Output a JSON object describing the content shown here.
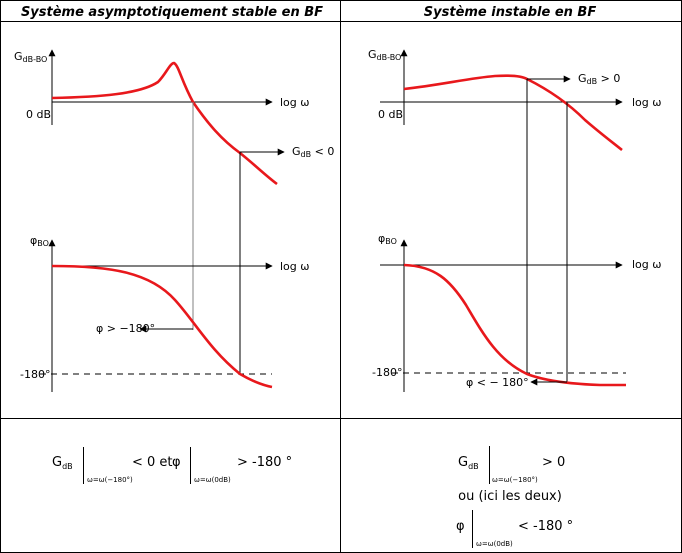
{
  "panels": {
    "left": {
      "title": "Système asymptotiquement stable en BF",
      "gain_axis": {
        "symbol": "G",
        "subscript": "dB-BO"
      },
      "zero_db": "0 dB",
      "x_axis_label": "log ω",
      "gain_annot": {
        "symbol": "G",
        "subscript": "dB",
        "rel": " < 0"
      },
      "phase_axis": {
        "symbol": "φ",
        "subscript": "BO"
      },
      "phase_annot": "φ > −180°",
      "minus180": "-180°"
    },
    "right": {
      "title": "Système instable en BF",
      "gain_axis": {
        "symbol": "G",
        "subscript": "dB-BO"
      },
      "zero_db": "0 dB",
      "x_axis_label": "log ω",
      "gain_annot": {
        "symbol": "G",
        "subscript": "dB",
        "rel": " > 0"
      },
      "phase_axis": {
        "symbol": "φ",
        "subscript": "BO"
      },
      "phase_annot": "φ < − 180°",
      "minus180": "-180°"
    }
  },
  "conditions": {
    "left": {
      "gain_symbol": "G",
      "gain_sub": "dB",
      "eval1": "ω=ω(−180°)",
      "part1": "< 0 et",
      "phi_symbol": "φ",
      "eval2": "ω=ω(0dB)",
      "part2": "> -180 °"
    },
    "right": {
      "gain_symbol": "G",
      "gain_sub": "dB",
      "eval1": "ω=ω(−180°)",
      "part1": "> 0",
      "connector": "ou (ici les deux)",
      "phi_symbol": "φ",
      "eval2": "ω=ω(0dB)",
      "part2": "< -180 °"
    }
  },
  "colors": {
    "curve": "#e8181c",
    "line": "#000000",
    "guide": "#808080"
  }
}
